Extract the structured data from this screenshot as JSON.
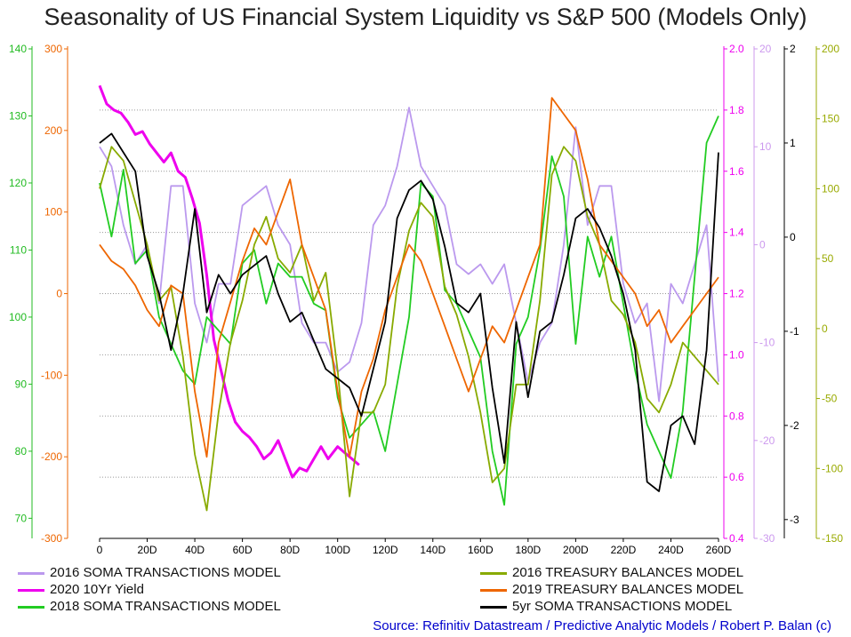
{
  "chart_data": {
    "type": "line",
    "title": "Seasonality of US Financial System Liquidity vs S&P 500 (Models Only)",
    "source": "Source: Refinitiv Datastream / Predictive Analytic Models / Robert P. Balan (c)",
    "grid": true,
    "legend_placement": "bottom",
    "x_axis": {
      "range": [
        0,
        260
      ],
      "ticks": [
        "0",
        "20D",
        "40D",
        "60D",
        "80D",
        "100D",
        "120D",
        "140D",
        "160D",
        "180D",
        "200D",
        "220D",
        "240D",
        "260D"
      ]
    },
    "y_axes": [
      {
        "id": "green_left",
        "color": "#22bb22",
        "range": [
          67,
          140
        ],
        "ticks": [
          "140",
          "130",
          "120",
          "110",
          "100",
          "90",
          "80",
          "70"
        ]
      },
      {
        "id": "orange_left",
        "color": "#ee6600",
        "range": [
          -300,
          300
        ],
        "ticks": [
          "300",
          "200",
          "100",
          "0",
          "-100",
          "-200",
          "-300"
        ]
      },
      {
        "id": "magenta_right",
        "color": "#ee00ee",
        "range": [
          0.4,
          2.0
        ],
        "ticks": [
          "2.0",
          "1.8",
          "1.6",
          "1.4",
          "1.2",
          "1.0",
          "0.8",
          "0.6",
          "0.4"
        ]
      },
      {
        "id": "lilac_right",
        "color": "#cc99ee",
        "range": [
          -30,
          20
        ],
        "ticks": [
          "20",
          "10",
          "0",
          "-10",
          "-20",
          "-30"
        ]
      },
      {
        "id": "black_right",
        "color": "#000000",
        "range": [
          -3.2,
          2.0
        ],
        "ticks": [
          "2",
          "1",
          "0",
          "-1",
          "-2",
          "-3"
        ]
      },
      {
        "id": "olive_right",
        "color": "#99aa00",
        "range": [
          -150,
          200
        ],
        "ticks": [
          "200",
          "150",
          "100",
          "50",
          "0",
          "-50",
          "-100",
          "-150"
        ]
      }
    ],
    "series": [
      {
        "name": "2016 SOMA TRANSACTIONS MODEL",
        "color": "#bb99ee",
        "axis": "lilac_right",
        "x": [
          0,
          5,
          10,
          15,
          20,
          25,
          30,
          35,
          40,
          45,
          50,
          55,
          60,
          65,
          70,
          75,
          80,
          85,
          90,
          95,
          100,
          105,
          110,
          115,
          120,
          125,
          130,
          135,
          140,
          145,
          150,
          155,
          160,
          165,
          170,
          175,
          180,
          185,
          190,
          195,
          200,
          205,
          210,
          215,
          220,
          225,
          230,
          235,
          240,
          245,
          250,
          255,
          260
        ],
        "values": [
          10,
          8,
          2,
          -2,
          0,
          -6,
          6,
          6,
          -6,
          -10,
          -4,
          -4,
          4,
          5,
          6,
          2,
          0,
          -8,
          -10,
          -10,
          -13,
          -12,
          -8,
          2,
          4,
          8,
          14,
          8,
          6,
          4,
          -2,
          -3,
          -2,
          -4,
          -2,
          -8,
          -14,
          -10,
          -8,
          0,
          12,
          2,
          6,
          6,
          -4,
          -8,
          -6,
          -16,
          -4,
          -6,
          -2,
          2,
          -14
        ]
      },
      {
        "name": "2020 10Yr Yield",
        "color": "#ee00ee",
        "axis": "magenta_right",
        "x": [
          0,
          3,
          6,
          9,
          12,
          15,
          18,
          21,
          24,
          27,
          30,
          33,
          36,
          39,
          42,
          45,
          48,
          51,
          54,
          57,
          60,
          63,
          66,
          69,
          72,
          75,
          78,
          81,
          84,
          87,
          90,
          93,
          96,
          100,
          103,
          106,
          109
        ],
        "values": [
          1.88,
          1.82,
          1.8,
          1.79,
          1.76,
          1.72,
          1.73,
          1.69,
          1.66,
          1.63,
          1.66,
          1.6,
          1.58,
          1.51,
          1.43,
          1.26,
          1.05,
          0.95,
          0.85,
          0.78,
          0.75,
          0.73,
          0.7,
          0.66,
          0.68,
          0.72,
          0.66,
          0.6,
          0.63,
          0.62,
          0.66,
          0.7,
          0.66,
          0.7,
          0.68,
          0.66,
          0.64
        ]
      },
      {
        "name": "2018 SOMA TRANSACTIONS MODEL",
        "color": "#22cc22",
        "axis": "green_left",
        "x": [
          0,
          5,
          10,
          15,
          20,
          25,
          30,
          35,
          40,
          45,
          50,
          55,
          60,
          65,
          70,
          75,
          80,
          85,
          90,
          95,
          100,
          105,
          110,
          115,
          120,
          125,
          130,
          135,
          140,
          145,
          150,
          155,
          160,
          165,
          170,
          175,
          180,
          185,
          190,
          195,
          200,
          205,
          210,
          215,
          220,
          225,
          230,
          235,
          240,
          245,
          250,
          255,
          260
        ],
        "values": [
          120,
          112,
          122,
          108,
          110,
          100,
          96,
          92,
          90,
          100,
          98,
          96,
          108,
          110,
          102,
          108,
          106,
          106,
          102,
          101,
          88,
          82,
          84,
          86,
          80,
          90,
          100,
          120,
          118,
          104,
          102,
          98,
          94,
          80,
          72,
          96,
          100,
          110,
          124,
          118,
          96,
          112,
          106,
          112,
          102,
          92,
          84,
          80,
          76,
          86,
          106,
          126,
          130
        ]
      },
      {
        "name": "2016 TREASURY BALANCES MODEL",
        "color": "#88aa00",
        "axis": "olive_right",
        "x": [
          0,
          5,
          10,
          15,
          20,
          25,
          30,
          35,
          40,
          45,
          50,
          55,
          60,
          65,
          70,
          75,
          80,
          85,
          90,
          95,
          100,
          105,
          110,
          115,
          120,
          125,
          130,
          135,
          140,
          145,
          150,
          155,
          160,
          165,
          170,
          175,
          180,
          185,
          190,
          195,
          200,
          205,
          210,
          215,
          220,
          225,
          230,
          235,
          240,
          245,
          250,
          255,
          260
        ],
        "values": [
          100,
          130,
          120,
          90,
          60,
          20,
          30,
          -20,
          -90,
          -130,
          -60,
          -10,
          20,
          60,
          80,
          50,
          40,
          60,
          20,
          40,
          -30,
          -120,
          -60,
          -60,
          -40,
          30,
          70,
          90,
          80,
          30,
          10,
          -20,
          -60,
          -110,
          -100,
          -40,
          -40,
          20,
          110,
          130,
          120,
          80,
          60,
          20,
          10,
          -10,
          -50,
          -60,
          -40,
          -10,
          -20,
          -30,
          -40
        ]
      },
      {
        "name": "2019 TREASURY BALANCES MODEL",
        "color": "#ee6600",
        "axis": "orange_left",
        "x": [
          0,
          5,
          10,
          15,
          20,
          25,
          30,
          35,
          40,
          45,
          50,
          55,
          60,
          65,
          70,
          75,
          80,
          85,
          90,
          95,
          100,
          105,
          110,
          115,
          120,
          125,
          130,
          135,
          140,
          145,
          150,
          155,
          160,
          165,
          170,
          175,
          180,
          185,
          190,
          195,
          200,
          205,
          210,
          215,
          220,
          225,
          230,
          235,
          240,
          245,
          250,
          255,
          260
        ],
        "values": [
          60,
          40,
          30,
          10,
          -20,
          -40,
          10,
          0,
          -120,
          -200,
          -60,
          -10,
          40,
          80,
          60,
          100,
          140,
          60,
          20,
          -20,
          -120,
          -200,
          -120,
          -80,
          -20,
          20,
          60,
          40,
          0,
          -40,
          -80,
          -120,
          -80,
          -40,
          -60,
          -20,
          20,
          60,
          240,
          220,
          200,
          140,
          60,
          40,
          20,
          0,
          -40,
          -20,
          -60,
          -40,
          -20,
          0,
          20
        ]
      },
      {
        "name": "5yr SOMA TRANSACTIONS MODEL",
        "color": "#000000",
        "axis": "black_right",
        "x": [
          0,
          5,
          10,
          15,
          20,
          25,
          30,
          35,
          40,
          45,
          50,
          55,
          60,
          65,
          70,
          75,
          80,
          85,
          90,
          95,
          100,
          105,
          110,
          115,
          120,
          125,
          130,
          135,
          140,
          145,
          150,
          155,
          160,
          165,
          170,
          175,
          180,
          185,
          190,
          195,
          200,
          205,
          210,
          215,
          220,
          225,
          230,
          235,
          240,
          245,
          250,
          255,
          260
        ],
        "values": [
          1.0,
          1.1,
          0.9,
          0.7,
          -0.2,
          -0.6,
          -1.2,
          -0.6,
          0.3,
          -0.8,
          -0.4,
          -0.6,
          -0.4,
          -0.3,
          -0.2,
          -0.6,
          -0.9,
          -0.8,
          -1.1,
          -1.4,
          -1.5,
          -1.6,
          -1.9,
          -1.4,
          -0.9,
          0.2,
          0.5,
          0.6,
          0.4,
          -0.1,
          -0.7,
          -0.8,
          -0.6,
          -1.6,
          -2.4,
          -0.9,
          -1.7,
          -1.0,
          -0.9,
          -0.4,
          0.2,
          0.3,
          0.1,
          -0.2,
          -0.6,
          -1.2,
          -2.6,
          -2.7,
          -2.0,
          -1.9,
          -2.2,
          -1.2,
          0.9
        ]
      }
    ]
  }
}
